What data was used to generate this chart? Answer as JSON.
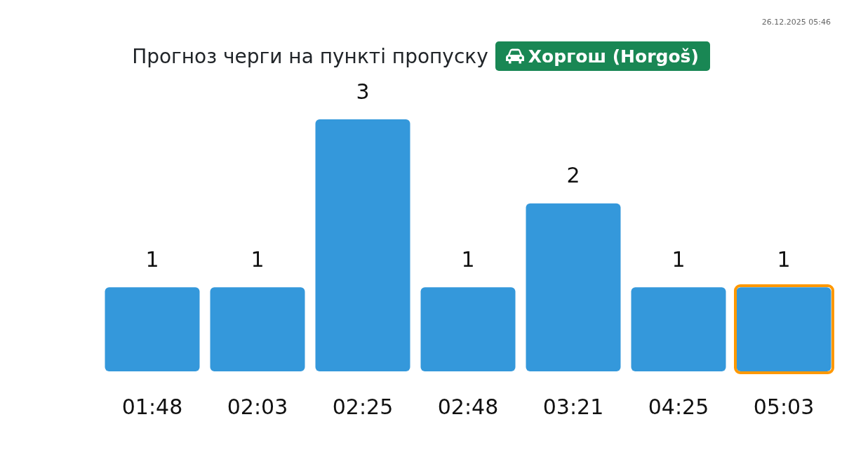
{
  "chart_data": {
    "type": "bar",
    "title": "Прогноз черги на пункті пропуску",
    "subtitle": "Хоргош (Horgoš)",
    "categories": [
      "01:48",
      "02:03",
      "02:25",
      "02:48",
      "03:21",
      "04:25",
      "05:03"
    ],
    "values": [
      1,
      1,
      3,
      1,
      2,
      1,
      1
    ],
    "color": "#3498db",
    "data_labels": true,
    "annotations": [
      "26.12.2025 05:46"
    ]
  }
}
